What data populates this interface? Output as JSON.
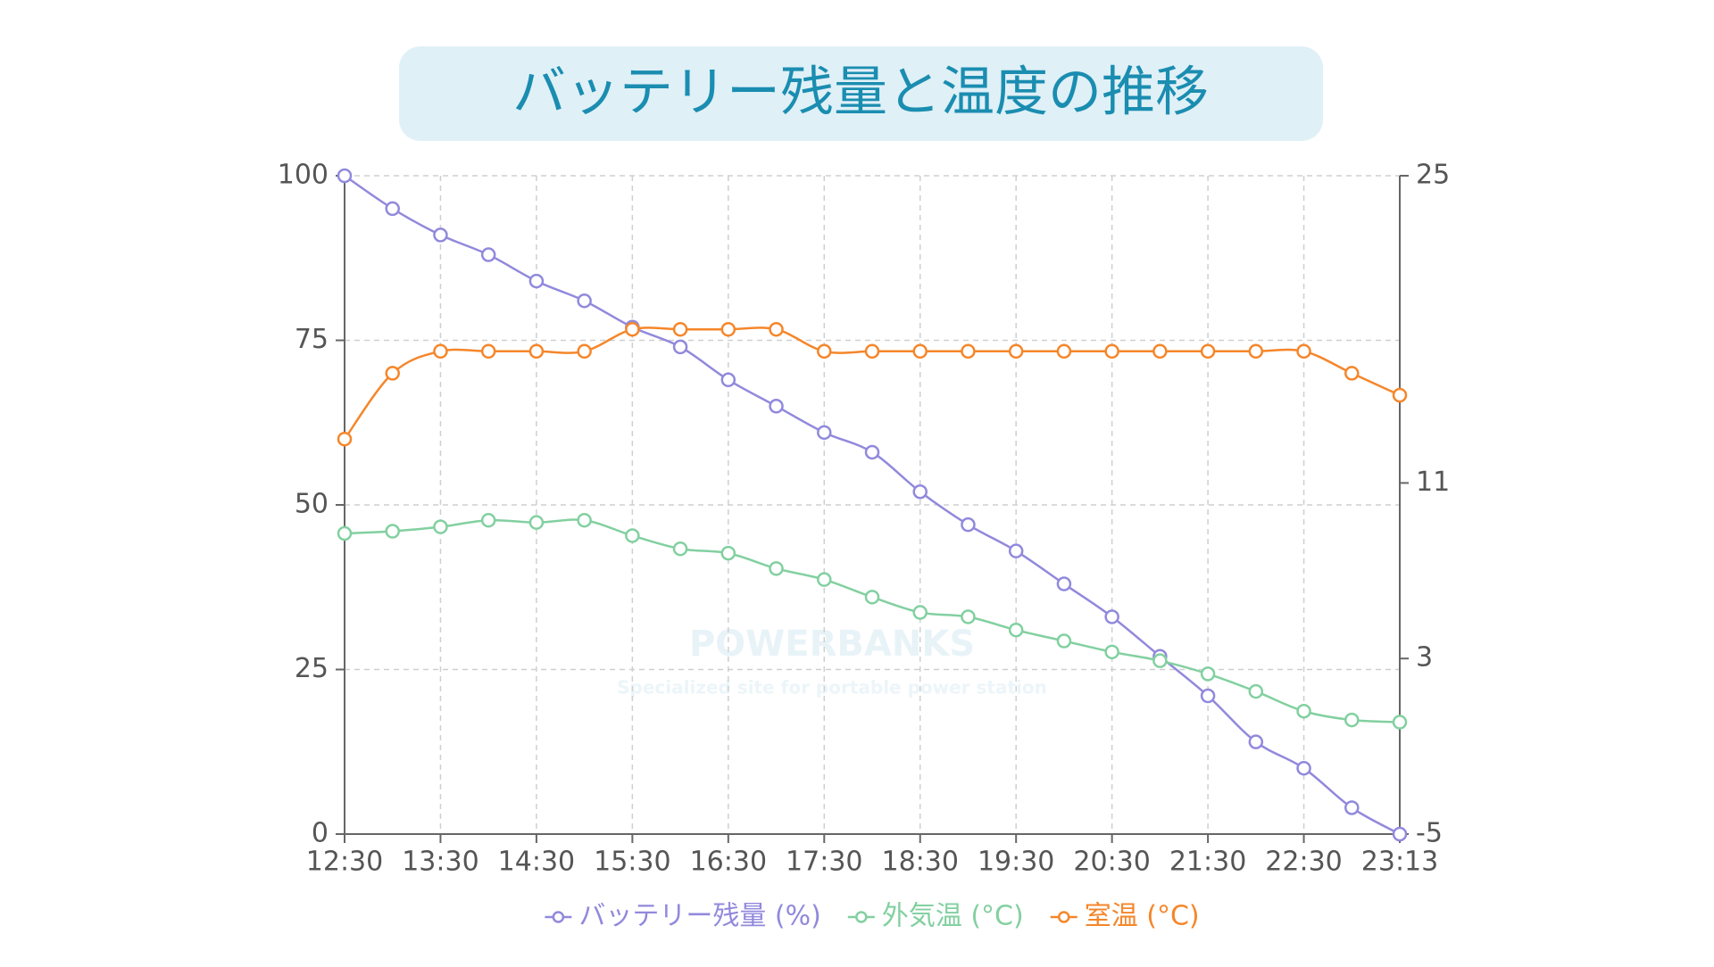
{
  "chart_data": {
    "type": "line",
    "title": "バッテリー残量と温度の推移",
    "watermark": "POWERBANKS",
    "watermark_subtitle": "Specialized site for portable power station",
    "categories": [
      "12:30",
      null,
      "13:30",
      null,
      "14:30",
      null,
      "15:30",
      null,
      "16:30",
      null,
      "17:30",
      null,
      "18:30",
      null,
      "19:30",
      null,
      "20:30",
      null,
      "21:30",
      null,
      "22:30",
      null,
      "23:13"
    ],
    "series": [
      {
        "name": "バッテリー残量 (%)",
        "color": "#9189dc",
        "axis": "y",
        "values": [
          100,
          95,
          91,
          88,
          84,
          81,
          77,
          74,
          69,
          65,
          61,
          58,
          52,
          47,
          43,
          38,
          33,
          27,
          21,
          14,
          10,
          4,
          0
        ]
      },
      {
        "name": "外気温 (°C)",
        "color": "#82d0a0",
        "axis": "y2",
        "values": [
          8.7,
          8.8,
          9.0,
          9.3,
          9.2,
          9.3,
          8.6,
          8.0,
          7.8,
          7.1,
          6.6,
          5.8,
          5.1,
          4.9,
          4.3,
          3.8,
          3.3,
          2.9,
          2.3,
          1.5,
          0.6,
          0.2,
          0.1
        ]
      },
      {
        "name": "室温 (°C)",
        "color": "#f5862a",
        "axis": "y2",
        "values": [
          13,
          16,
          17,
          17,
          17,
          17,
          18,
          18,
          18,
          18,
          17,
          17,
          17,
          17,
          17,
          17,
          17,
          17,
          17,
          17,
          17,
          16,
          15
        ]
      }
    ],
    "ylim": [
      0,
      100
    ],
    "yticks": [
      0,
      25,
      50,
      75,
      100
    ],
    "y2lim": [
      -5,
      25
    ],
    "y2ticks": [
      -5,
      3,
      11,
      25
    ],
    "grid": true
  }
}
